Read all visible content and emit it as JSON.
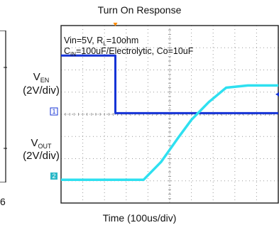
{
  "title": "Turn On Response",
  "xlabel": "Time (100us/div)",
  "annotation_line1": {
    "text": "Vin=5V, R",
    "sub": "L",
    "rest": "=10ohm"
  },
  "annotation_line2": {
    "text": "C",
    "sub": "IN",
    "rest": "=100uF/Electrolytic, Co=10uF"
  },
  "channels": {
    "ven": {
      "name": "V",
      "sub": "EN",
      "scale": "(2V/div)",
      "marker": "1"
    },
    "vout": {
      "name": "V",
      "sub": "OUT",
      "scale": "(2V/div)",
      "marker": "2"
    }
  },
  "stray_text": "6",
  "colors": {
    "ven": "#1533d6",
    "vout": "#2ee0f0",
    "grid": "#9a9a9a",
    "frame": "#202020",
    "trigger": "#ff8c00"
  },
  "chart_data": {
    "type": "line",
    "title": "Turn On Response",
    "xlabel": "Time (100us/div)",
    "x_unit_per_div": "100us",
    "xlim_div": [
      0,
      10
    ],
    "ylim_div": [
      0,
      8
    ],
    "grid": true,
    "series": [
      {
        "name": "VEN",
        "scale": "2V/div",
        "points_div": [
          [
            0,
            6.65
          ],
          [
            2.5,
            6.65
          ],
          [
            2.5,
            4.05
          ],
          [
            10,
            4.05
          ]
        ]
      },
      {
        "name": "VOUT",
        "scale": "2V/div",
        "points_div": [
          [
            0,
            1.05
          ],
          [
            3.8,
            1.05
          ],
          [
            4.6,
            1.85
          ],
          [
            5.4,
            2.95
          ],
          [
            6.0,
            3.75
          ],
          [
            6.8,
            4.55
          ],
          [
            7.6,
            5.2
          ],
          [
            8.6,
            5.3
          ],
          [
            10,
            5.3
          ]
        ]
      }
    ]
  }
}
